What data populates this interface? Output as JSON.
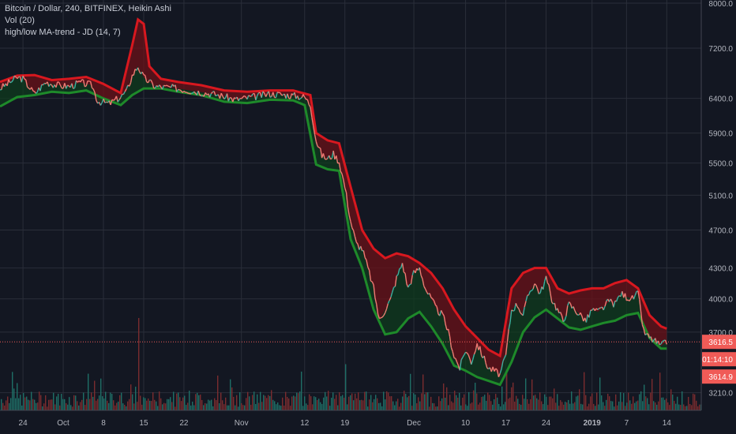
{
  "chart_data": {
    "type": "line",
    "legend": {
      "main": "Bitcoin / Dollar, 240, BITFINEX, Heikin Ashi",
      "volume": "Vol (20)",
      "indicator": "high/low MA-trend - JD (14, 7)"
    },
    "x_ticks": [
      {
        "label": "24",
        "day": 1
      },
      {
        "label": "Oct",
        "day": 8
      },
      {
        "label": "8",
        "day": 15
      },
      {
        "label": "15",
        "day": 22
      },
      {
        "label": "22",
        "day": 29
      },
      {
        "label": "Nov",
        "day": 39
      },
      {
        "label": "12",
        "day": 50
      },
      {
        "label": "19",
        "day": 57
      },
      {
        "label": "Dec",
        "day": 69
      },
      {
        "label": "10",
        "day": 78
      },
      {
        "label": "17",
        "day": 85
      },
      {
        "label": "24",
        "day": 92
      },
      {
        "label": "2019",
        "day": 100
      },
      {
        "label": "7",
        "day": 106
      },
      {
        "label": "14",
        "day": 113
      }
    ],
    "x_range": [
      -3,
      119
    ],
    "y_ticks": [
      8000.0,
      7200.0,
      6400.0,
      5900.0,
      5500.0,
      5100.0,
      4700.0,
      4300.0,
      4000.0,
      3700.0,
      3210.0
    ],
    "y_tick_labels": [
      "8000.0",
      "7200.0",
      "6400.0",
      "5900.0",
      "5500.0",
      "5100.0",
      "4700.0",
      "4300.0",
      "4000.0",
      "3700.0",
      "3210.0"
    ],
    "ylim": [
      3080,
      8060
    ],
    "y_scale": "log",
    "price_series": [
      {
        "day": -3,
        "price": 6550
      },
      {
        "day": 0,
        "price": 6720
      },
      {
        "day": 1,
        "price": 6700
      },
      {
        "day": 3,
        "price": 6470
      },
      {
        "day": 5,
        "price": 6650
      },
      {
        "day": 7,
        "price": 6600
      },
      {
        "day": 9,
        "price": 6580
      },
      {
        "day": 11,
        "price": 6640
      },
      {
        "day": 13,
        "price": 6600
      },
      {
        "day": 14,
        "price": 6360
      },
      {
        "day": 16,
        "price": 6320
      },
      {
        "day": 18,
        "price": 6420
      },
      {
        "day": 19,
        "price": 6500
      },
      {
        "day": 20,
        "price": 6750
      },
      {
        "day": 21,
        "price": 6900
      },
      {
        "day": 22,
        "price": 6720
      },
      {
        "day": 24,
        "price": 6580
      },
      {
        "day": 27,
        "price": 6560
      },
      {
        "day": 30,
        "price": 6520
      },
      {
        "day": 33,
        "price": 6480
      },
      {
        "day": 35,
        "price": 6450
      },
      {
        "day": 38,
        "price": 6380
      },
      {
        "day": 41,
        "price": 6420
      },
      {
        "day": 44,
        "price": 6470
      },
      {
        "day": 47,
        "price": 6450
      },
      {
        "day": 50,
        "price": 6420
      },
      {
        "day": 51,
        "price": 6300
      },
      {
        "day": 52,
        "price": 5800
      },
      {
        "day": 53,
        "price": 5600
      },
      {
        "day": 54,
        "price": 5550
      },
      {
        "day": 55,
        "price": 5620
      },
      {
        "day": 56,
        "price": 5520
      },
      {
        "day": 57,
        "price": 5200
      },
      {
        "day": 58,
        "price": 4800
      },
      {
        "day": 59,
        "price": 4550
      },
      {
        "day": 60,
        "price": 4500
      },
      {
        "day": 61,
        "price": 4300
      },
      {
        "day": 62,
        "price": 4100
      },
      {
        "day": 63,
        "price": 3800
      },
      {
        "day": 64,
        "price": 3900
      },
      {
        "day": 65,
        "price": 4000
      },
      {
        "day": 66,
        "price": 4200
      },
      {
        "day": 67,
        "price": 4350
      },
      {
        "day": 68,
        "price": 4100
      },
      {
        "day": 69,
        "price": 4250
      },
      {
        "day": 70,
        "price": 4300
      },
      {
        "day": 71,
        "price": 4100
      },
      {
        "day": 72,
        "price": 4000
      },
      {
        "day": 73,
        "price": 3900
      },
      {
        "day": 74,
        "price": 3850
      },
      {
        "day": 75,
        "price": 3700
      },
      {
        "day": 76,
        "price": 3500
      },
      {
        "day": 77,
        "price": 3400
      },
      {
        "day": 78,
        "price": 3550
      },
      {
        "day": 79,
        "price": 3450
      },
      {
        "day": 80,
        "price": 3600
      },
      {
        "day": 81,
        "price": 3500
      },
      {
        "day": 82,
        "price": 3400
      },
      {
        "day": 83,
        "price": 3380
      },
      {
        "day": 84,
        "price": 3350
      },
      {
        "day": 85,
        "price": 3500
      },
      {
        "day": 86,
        "price": 3900
      },
      {
        "day": 87,
        "price": 3950
      },
      {
        "day": 88,
        "price": 3850
      },
      {
        "day": 89,
        "price": 4050
      },
      {
        "day": 90,
        "price": 4150
      },
      {
        "day": 91,
        "price": 4050
      },
      {
        "day": 92,
        "price": 4200
      },
      {
        "day": 93,
        "price": 4000
      },
      {
        "day": 94,
        "price": 3900
      },
      {
        "day": 95,
        "price": 3800
      },
      {
        "day": 96,
        "price": 3950
      },
      {
        "day": 97,
        "price": 3900
      },
      {
        "day": 98,
        "price": 3850
      },
      {
        "day": 99,
        "price": 3800
      },
      {
        "day": 100,
        "price": 3900
      },
      {
        "day": 101,
        "price": 3880
      },
      {
        "day": 102,
        "price": 3920
      },
      {
        "day": 103,
        "price": 3980
      },
      {
        "day": 104,
        "price": 3950
      },
      {
        "day": 105,
        "price": 4050
      },
      {
        "day": 106,
        "price": 4020
      },
      {
        "day": 107,
        "price": 4000
      },
      {
        "day": 108,
        "price": 4050
      },
      {
        "day": 109,
        "price": 3700
      },
      {
        "day": 110,
        "price": 3650
      },
      {
        "day": 111,
        "price": 3620
      },
      {
        "day": 112,
        "price": 3580
      },
      {
        "day": 113,
        "price": 3616
      }
    ],
    "ma_high": [
      {
        "day": -3,
        "price": 6650
      },
      {
        "day": 0,
        "price": 6750
      },
      {
        "day": 3,
        "price": 6760
      },
      {
        "day": 6,
        "price": 6680
      },
      {
        "day": 9,
        "price": 6700
      },
      {
        "day": 12,
        "price": 6730
      },
      {
        "day": 15,
        "price": 6620
      },
      {
        "day": 18,
        "price": 6480
      },
      {
        "day": 20,
        "price": 7250
      },
      {
        "day": 21,
        "price": 7700
      },
      {
        "day": 22,
        "price": 7620
      },
      {
        "day": 23,
        "price": 6900
      },
      {
        "day": 25,
        "price": 6700
      },
      {
        "day": 28,
        "price": 6650
      },
      {
        "day": 32,
        "price": 6600
      },
      {
        "day": 36,
        "price": 6520
      },
      {
        "day": 40,
        "price": 6500
      },
      {
        "day": 44,
        "price": 6520
      },
      {
        "day": 48,
        "price": 6520
      },
      {
        "day": 51,
        "price": 6450
      },
      {
        "day": 52,
        "price": 5900
      },
      {
        "day": 54,
        "price": 5800
      },
      {
        "day": 56,
        "price": 5760
      },
      {
        "day": 58,
        "price": 5200
      },
      {
        "day": 60,
        "price": 4700
      },
      {
        "day": 62,
        "price": 4500
      },
      {
        "day": 64,
        "price": 4400
      },
      {
        "day": 66,
        "price": 4450
      },
      {
        "day": 68,
        "price": 4420
      },
      {
        "day": 70,
        "price": 4350
      },
      {
        "day": 72,
        "price": 4250
      },
      {
        "day": 74,
        "price": 4100
      },
      {
        "day": 76,
        "price": 3900
      },
      {
        "day": 78,
        "price": 3750
      },
      {
        "day": 80,
        "price": 3650
      },
      {
        "day": 82,
        "price": 3550
      },
      {
        "day": 84,
        "price": 3500
      },
      {
        "day": 86,
        "price": 4100
      },
      {
        "day": 88,
        "price": 4250
      },
      {
        "day": 90,
        "price": 4300
      },
      {
        "day": 92,
        "price": 4300
      },
      {
        "day": 94,
        "price": 4100
      },
      {
        "day": 96,
        "price": 4050
      },
      {
        "day": 98,
        "price": 4080
      },
      {
        "day": 100,
        "price": 4100
      },
      {
        "day": 102,
        "price": 4100
      },
      {
        "day": 104,
        "price": 4150
      },
      {
        "day": 106,
        "price": 4180
      },
      {
        "day": 108,
        "price": 4100
      },
      {
        "day": 110,
        "price": 3850
      },
      {
        "day": 112,
        "price": 3750
      },
      {
        "day": 113,
        "price": 3730
      }
    ],
    "ma_low": [
      {
        "day": -3,
        "price": 6280
      },
      {
        "day": 0,
        "price": 6420
      },
      {
        "day": 3,
        "price": 6450
      },
      {
        "day": 6,
        "price": 6500
      },
      {
        "day": 9,
        "price": 6480
      },
      {
        "day": 12,
        "price": 6520
      },
      {
        "day": 15,
        "price": 6400
      },
      {
        "day": 18,
        "price": 6300
      },
      {
        "day": 20,
        "price": 6450
      },
      {
        "day": 22,
        "price": 6550
      },
      {
        "day": 25,
        "price": 6550
      },
      {
        "day": 28,
        "price": 6500
      },
      {
        "day": 32,
        "price": 6450
      },
      {
        "day": 36,
        "price": 6350
      },
      {
        "day": 40,
        "price": 6330
      },
      {
        "day": 44,
        "price": 6380
      },
      {
        "day": 48,
        "price": 6370
      },
      {
        "day": 50,
        "price": 6300
      },
      {
        "day": 52,
        "price": 5480
      },
      {
        "day": 54,
        "price": 5420
      },
      {
        "day": 56,
        "price": 5400
      },
      {
        "day": 58,
        "price": 4600
      },
      {
        "day": 60,
        "price": 4300
      },
      {
        "day": 62,
        "price": 3900
      },
      {
        "day": 64,
        "price": 3680
      },
      {
        "day": 66,
        "price": 3700
      },
      {
        "day": 68,
        "price": 3820
      },
      {
        "day": 70,
        "price": 3880
      },
      {
        "day": 72,
        "price": 3750
      },
      {
        "day": 74,
        "price": 3600
      },
      {
        "day": 76,
        "price": 3420
      },
      {
        "day": 78,
        "price": 3380
      },
      {
        "day": 80,
        "price": 3330
      },
      {
        "day": 82,
        "price": 3300
      },
      {
        "day": 84,
        "price": 3270
      },
      {
        "day": 86,
        "price": 3450
      },
      {
        "day": 88,
        "price": 3700
      },
      {
        "day": 90,
        "price": 3830
      },
      {
        "day": 92,
        "price": 3900
      },
      {
        "day": 94,
        "price": 3820
      },
      {
        "day": 96,
        "price": 3740
      },
      {
        "day": 98,
        "price": 3720
      },
      {
        "day": 100,
        "price": 3750
      },
      {
        "day": 102,
        "price": 3780
      },
      {
        "day": 104,
        "price": 3800
      },
      {
        "day": 106,
        "price": 3850
      },
      {
        "day": 108,
        "price": 3870
      },
      {
        "day": 110,
        "price": 3650
      },
      {
        "day": 112,
        "price": 3560
      },
      {
        "day": 113,
        "price": 3560
      }
    ],
    "volume_spikes": [
      {
        "day": 21,
        "height_frac": 0.9
      },
      {
        "day": 57,
        "height_frac": 0.45
      },
      {
        "day": 58,
        "height_frac": 0.35
      },
      {
        "day": 66,
        "height_frac": 0.3
      },
      {
        "day": 85,
        "height_frac": 0.4
      },
      {
        "day": 86,
        "height_frac": 0.3
      },
      {
        "day": 109,
        "height_frac": 0.25
      }
    ],
    "price_markers": [
      {
        "label": "3616.5",
        "price": 3616.5,
        "bg": "#f05b57"
      },
      {
        "label": "01:14:10",
        "price": 3555,
        "bg": "#f05b57"
      },
      {
        "label": "3614.9",
        "price": 3490,
        "bg": "#f05b57"
      }
    ],
    "colors": {
      "background": "#131722",
      "grid": "#2a2e39",
      "price": "#f07a73",
      "price_up": "#3bb2a0",
      "ma_high": "#d8181f",
      "ma_low": "#1e8a2a",
      "fill_high": "#6b1118",
      "fill_low": "#0e3d1c",
      "volume_up": "#1f6e66",
      "volume_down": "#7a2c2f",
      "axis_text": "#b2b5be",
      "current_price_line": "#f05b57"
    }
  }
}
